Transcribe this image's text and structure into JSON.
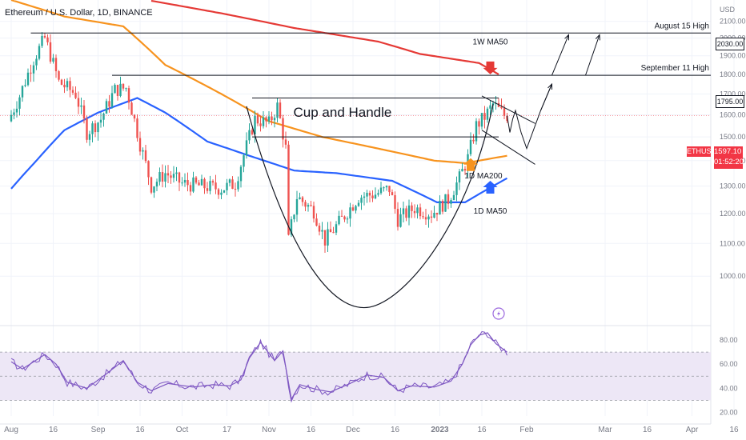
{
  "header": {
    "title": "Ethereum / U.S. Dollar, 1D, BINANCE"
  },
  "colors": {
    "up": "#26a69a",
    "down": "#ef5350",
    "ma200": "#f7931e",
    "ma50": "#2962ff",
    "wma50": "#e53935",
    "rsi": "#7e57c2",
    "rsi_band": "#ede7f6",
    "grid": "#f0f3fa",
    "text": "#131722"
  },
  "chart_data": [
    {
      "type": "candlestick",
      "symbol": "ETHUSD",
      "currency": "USD",
      "y_ticks": [
        1000,
        1100,
        1200,
        1300,
        1400,
        1500,
        1600,
        1700,
        1800,
        1900,
        2000,
        2100
      ],
      "x_ticks": [
        "Aug",
        "16",
        "Sep",
        "16",
        "Oct",
        "17",
        "Nov",
        "16",
        "Dec",
        "16",
        "2023",
        "16",
        "Feb",
        "Mar",
        "16",
        "Apr",
        "16"
      ],
      "ylim": [
        870,
        2235
      ],
      "last_price": "1597.10",
      "countdown": "01:52:20",
      "levels": [
        {
          "label": "August 15 High",
          "value": 2030,
          "badge": "2030.00"
        },
        {
          "label": "September 11 High",
          "value": 1795,
          "badge": "1795.00"
        }
      ],
      "annotations": {
        "pattern": "Cup and Handle",
        "wma50": "1W MA50",
        "ma200": "1D  MA200",
        "ma50": "1D  MA50"
      },
      "path_anchors": [
        [
          "Aug 1",
          1570
        ],
        [
          "Aug 5",
          1690
        ],
        [
          "Aug 10",
          1880
        ],
        [
          "Aug 14",
          2000
        ],
        [
          "Aug 19",
          1760
        ],
        [
          "Aug 25",
          1700
        ],
        [
          "Aug 29",
          1520
        ],
        [
          "Sep 3",
          1580
        ],
        [
          "Sep 8",
          1720
        ],
        [
          "Sep 12",
          1730
        ],
        [
          "Sep 17",
          1470
        ],
        [
          "Sep 21",
          1300
        ],
        [
          "Sep 26",
          1350
        ],
        [
          "Oct 2",
          1310
        ],
        [
          "Oct 9",
          1300
        ],
        [
          "Oct 16",
          1290
        ],
        [
          "Oct 21",
          1310
        ],
        [
          "Oct 25",
          1460
        ],
        [
          "Oct 28",
          1580
        ],
        [
          "Nov 2",
          1560
        ],
        [
          "Nov 5",
          1640
        ],
        [
          "Nov 8",
          1450
        ],
        [
          "Nov 9",
          1110
        ],
        [
          "Nov 12",
          1260
        ],
        [
          "Nov 18",
          1210
        ],
        [
          "Nov 22",
          1110
        ],
        [
          "Nov 28",
          1180
        ],
        [
          "Dec 4",
          1260
        ],
        [
          "Dec 10",
          1270
        ],
        [
          "Dec 15",
          1290
        ],
        [
          "Dec 18",
          1180
        ],
        [
          "Dec 24",
          1220
        ],
        [
          "Dec 30",
          1200
        ],
        [
          "Jan 5",
          1250
        ],
        [
          "Jan 9",
          1330
        ],
        [
          "Jan 12",
          1410
        ],
        [
          "Jan 15",
          1550
        ],
        [
          "Jan 18",
          1590
        ],
        [
          "Jan 21",
          1650
        ],
        [
          "Jan 25",
          1597
        ]
      ],
      "ma200_anchors": [
        [
          "Aug 1",
          2235
        ],
        [
          "Aug 20",
          2130
        ],
        [
          "Sep 10",
          2070
        ],
        [
          "Sep 25",
          1850
        ],
        [
          "Oct 15",
          1700
        ],
        [
          "Nov 1",
          1570
        ],
        [
          "Nov 20",
          1500
        ],
        [
          "Dec 10",
          1450
        ],
        [
          "Dec 30",
          1400
        ],
        [
          "Jan 10",
          1390
        ],
        [
          "Jan 25",
          1420
        ]
      ],
      "ma50_anchors": [
        [
          "Aug 1",
          1290
        ],
        [
          "Aug 10",
          1400
        ],
        [
          "Aug 20",
          1530
        ],
        [
          "Sep 1",
          1610
        ],
        [
          "Sep 15",
          1680
        ],
        [
          "Sep 25",
          1610
        ],
        [
          "Oct 10",
          1480
        ],
        [
          "Oct 25",
          1420
        ],
        [
          "Nov 10",
          1360
        ],
        [
          "Nov 25",
          1350
        ],
        [
          "Dec 15",
          1320
        ],
        [
          "Dec 31",
          1240
        ],
        [
          "Jan 10",
          1240
        ],
        [
          "Jan 25",
          1330
        ]
      ],
      "wma50_anchors": [
        [
          "Sep 20",
          2230
        ],
        [
          "Oct 15",
          2150
        ],
        [
          "Nov 10",
          2060
        ],
        [
          "Dec 10",
          1980
        ],
        [
          "Dec 25",
          1910
        ],
        [
          "Jan 15",
          1860
        ],
        [
          "Jan 22",
          1800
        ]
      ],
      "projection": [
        [
          "Jan 25",
          1597
        ],
        [
          "Jan 26",
          1520
        ],
        [
          "Jan 27",
          1580
        ],
        [
          "Jan 28",
          1620
        ],
        [
          "Jan 30",
          1520
        ],
        [
          "Feb 1",
          1450
        ],
        [
          "Feb 6",
          1620
        ],
        [
          "Feb 10",
          1750
        ]
      ],
      "targets": [
        [
          [
            "Feb 10",
            1795
          ],
          [
            "Feb 16",
            2020
          ]
        ],
        [
          [
            "Feb 22",
            1795
          ],
          [
            "Feb 27",
            2020
          ]
        ]
      ]
    },
    {
      "type": "line",
      "indicator": "RSI",
      "y_ticks": [
        20,
        40,
        60,
        80
      ],
      "band": [
        30,
        70
      ],
      "mid": 50,
      "ylim": [
        17,
        90
      ],
      "anchors": [
        [
          "Aug 1",
          62
        ],
        [
          "Aug 5",
          56
        ],
        [
          "Aug 9",
          62
        ],
        [
          "Aug 13",
          68
        ],
        [
          "Aug 17",
          60
        ],
        [
          "Aug 21",
          45
        ],
        [
          "Aug 28",
          40
        ],
        [
          "Sep 4",
          52
        ],
        [
          "Sep 10",
          63
        ],
        [
          "Sep 15",
          45
        ],
        [
          "Sep 20",
          38
        ],
        [
          "Sep 26",
          44
        ],
        [
          "Oct 5",
          41
        ],
        [
          "Oct 12",
          43
        ],
        [
          "Oct 18",
          42
        ],
        [
          "Oct 22",
          47
        ],
        [
          "Oct 25",
          65
        ],
        [
          "Oct 29",
          78
        ],
        [
          "Nov 3",
          63
        ],
        [
          "Nov 6",
          71
        ],
        [
          "Nov 9",
          31
        ],
        [
          "Nov 12",
          43
        ],
        [
          "Nov 18",
          39
        ],
        [
          "Nov 23",
          37
        ],
        [
          "Nov 30",
          44
        ],
        [
          "Dec 6",
          51
        ],
        [
          "Dec 12",
          49
        ],
        [
          "Dec 17",
          38
        ],
        [
          "Dec 22",
          42
        ],
        [
          "Dec 30",
          41
        ],
        [
          "Jan 5",
          46
        ],
        [
          "Jan 9",
          60
        ],
        [
          "Jan 12",
          76
        ],
        [
          "Jan 15",
          84
        ],
        [
          "Jan 18",
          86
        ],
        [
          "Jan 21",
          77
        ],
        [
          "Jan 25",
          70
        ]
      ]
    }
  ]
}
